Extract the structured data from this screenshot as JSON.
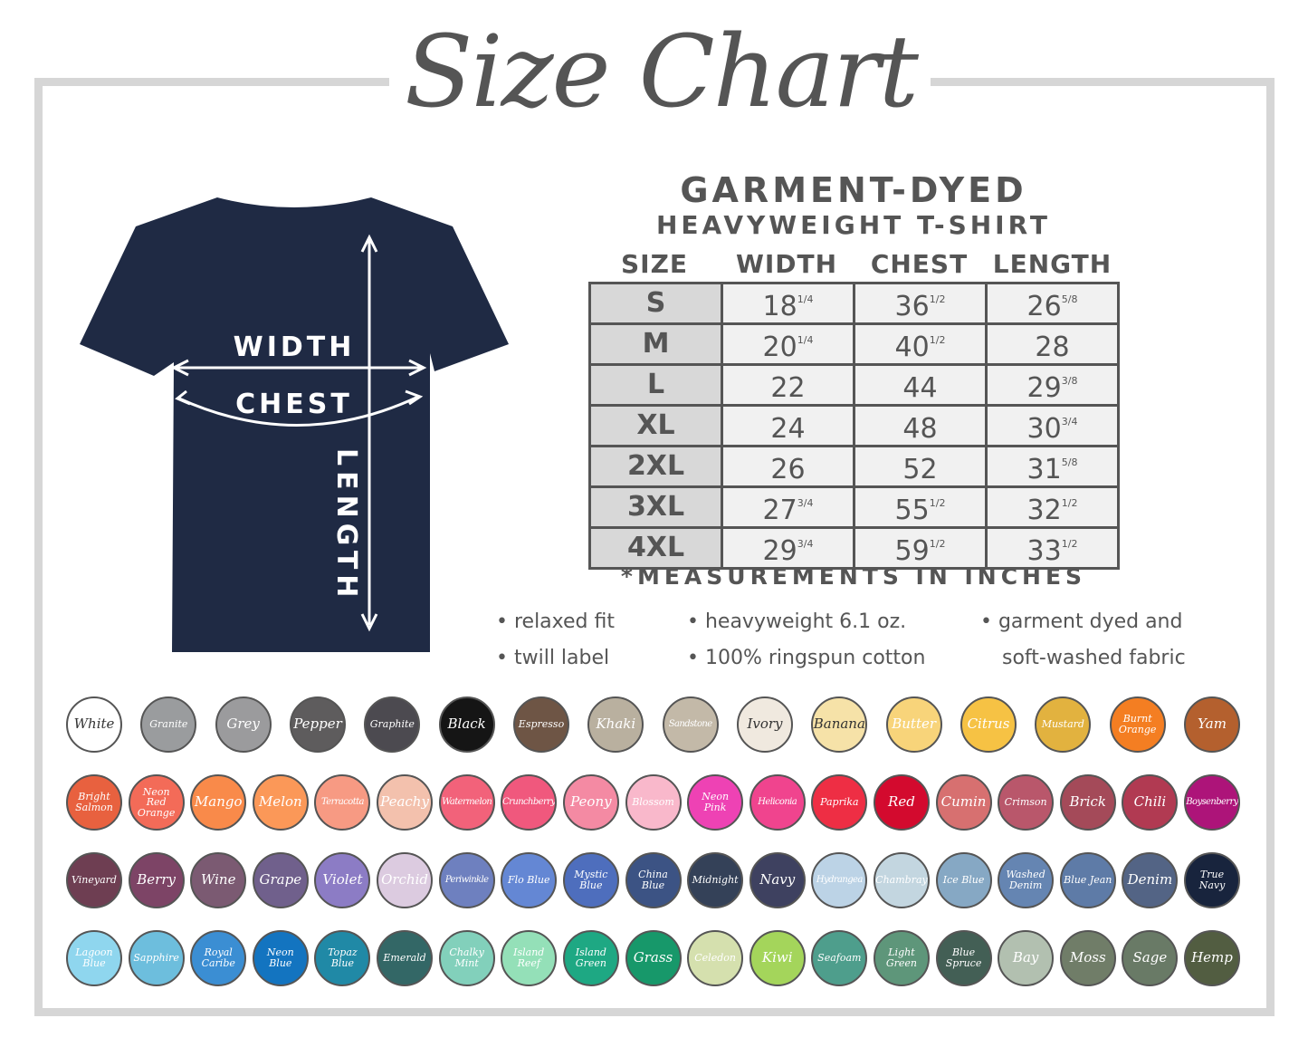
{
  "title": "Size Chart",
  "product": {
    "line1": "GARMENT-DYED",
    "line2": "HEAVYWEIGHT T-SHIRT"
  },
  "shirt": {
    "color": "#1f2a44",
    "labels": {
      "width": "WIDTH",
      "chest": "CHEST",
      "length": "LENGTH"
    }
  },
  "table": {
    "headers": [
      "SIZE",
      "WIDTH",
      "CHEST",
      "LENGTH"
    ],
    "rows": [
      {
        "size": "S",
        "width": [
          "18",
          "1/4"
        ],
        "chest": [
          "36",
          "1/2"
        ],
        "length": [
          "26",
          "5/8"
        ]
      },
      {
        "size": "M",
        "width": [
          "20",
          "1/4"
        ],
        "chest": [
          "40",
          "1/2"
        ],
        "length": [
          "28",
          ""
        ]
      },
      {
        "size": "L",
        "width": [
          "22",
          ""
        ],
        "chest": [
          "44",
          ""
        ],
        "length": [
          "29",
          "3/8"
        ]
      },
      {
        "size": "XL",
        "width": [
          "24",
          ""
        ],
        "chest": [
          "48",
          ""
        ],
        "length": [
          "30",
          "3/4"
        ]
      },
      {
        "size": "2XL",
        "width": [
          "26",
          ""
        ],
        "chest": [
          "52",
          ""
        ],
        "length": [
          "31",
          "5/8"
        ]
      },
      {
        "size": "3XL",
        "width": [
          "27",
          "3/4"
        ],
        "chest": [
          "55",
          "1/2"
        ],
        "length": [
          "32",
          "1/2"
        ]
      },
      {
        "size": "4XL",
        "width": [
          "29",
          "3/4"
        ],
        "chest": [
          "59",
          "1/2"
        ],
        "length": [
          "33",
          "1/2"
        ]
      }
    ]
  },
  "note": "*MEASUREMENTS IN INCHES",
  "features": [
    "• relaxed fit",
    "• twill label",
    "• heavyweight 6.1 oz.",
    "• 100% ringspun cotton",
    "• garment dyed and",
    "soft-washed fabric"
  ],
  "colors": [
    [
      [
        "White",
        "#ffffff"
      ],
      [
        "Granite",
        "#9a9c9e"
      ],
      [
        "Grey",
        "#9b9b9d"
      ],
      [
        "Pepper",
        "#5e5c5d"
      ],
      [
        "Graphite",
        "#4c4a50"
      ],
      [
        "Black",
        "#151515"
      ],
      [
        "Espresso",
        "#6e5545"
      ],
      [
        "Khaki",
        "#b9b09f"
      ],
      [
        "Sandstone",
        "#c3b9a8"
      ],
      [
        "Ivory",
        "#f0e9df"
      ],
      [
        "Banana",
        "#f6e2a8"
      ],
      [
        "Butter",
        "#f8d47a"
      ],
      [
        "Citrus",
        "#f6c244"
      ],
      [
        "Mustard",
        "#e2b23f"
      ],
      [
        "Burnt Orange",
        "#f47e22"
      ],
      [
        "Yam",
        "#b4602e"
      ]
    ],
    [
      [
        "Bright Salmon",
        "#e8613f"
      ],
      [
        "Neon Red Orange",
        "#f36b58"
      ],
      [
        "Mango",
        "#f98a4a"
      ],
      [
        "Melon",
        "#fb9858"
      ],
      [
        "Terracotta",
        "#f79a83"
      ],
      [
        "Peachy",
        "#f3c1ad"
      ],
      [
        "Watermelon",
        "#f2627a"
      ],
      [
        "Crunchberry",
        "#f0587d"
      ],
      [
        "Peony",
        "#f48aa3"
      ],
      [
        "Blossom",
        "#f9b8cb"
      ],
      [
        "Neon Pink",
        "#ee42b4"
      ],
      [
        "Heliconia",
        "#f0448e"
      ],
      [
        "Paprika",
        "#ee2e44"
      ],
      [
        "Red",
        "#d30a2e"
      ],
      [
        "Cumin",
        "#d77070"
      ],
      [
        "Crimson",
        "#b9576b"
      ],
      [
        "Brick",
        "#a44a59"
      ],
      [
        "Chili",
        "#b13a52"
      ],
      [
        "Boysenberry",
        "#ad1479"
      ]
    ],
    [
      [
        "Vineyard",
        "#6e3e52"
      ],
      [
        "Berry",
        "#7d4466"
      ],
      [
        "Wine",
        "#7b5a72"
      ],
      [
        "Grape",
        "#70608c"
      ],
      [
        "Violet",
        "#8c7cc5"
      ],
      [
        "Orchid",
        "#dccbe0"
      ],
      [
        "Periwinkle",
        "#6e80bf"
      ],
      [
        "Flo Blue",
        "#6487d4"
      ],
      [
        "Mystic Blue",
        "#4e6ebd"
      ],
      [
        "China Blue",
        "#3c5384"
      ],
      [
        "Midnight",
        "#344158"
      ],
      [
        "Navy",
        "#3e4160"
      ],
      [
        "Hydrangea",
        "#bcd3e6"
      ],
      [
        "Chambray",
        "#c3d6e0"
      ],
      [
        "Ice Blue",
        "#86a8c4"
      ],
      [
        "Washed Denim",
        "#6585b2"
      ],
      [
        "Blue Jean",
        "#5e7ba7"
      ],
      [
        "Denim",
        "#536485"
      ],
      [
        "True Navy",
        "#18243d"
      ]
    ],
    [
      [
        "Lagoon Blue",
        "#8fd6ee"
      ],
      [
        "Sapphire",
        "#6dbedd"
      ],
      [
        "Royal Caribe",
        "#3b8ed3"
      ],
      [
        "Neon Blue",
        "#1374c0"
      ],
      [
        "Topaz Blue",
        "#2089a6"
      ],
      [
        "Emerald",
        "#336766"
      ],
      [
        "Chalky Mint",
        "#82d0bb"
      ],
      [
        "Island Reef",
        "#94e0b8"
      ],
      [
        "Island Green",
        "#1ea883"
      ],
      [
        "Grass",
        "#17986a"
      ],
      [
        "Celedon",
        "#d5e0ae"
      ],
      [
        "Kiwi",
        "#a4d55b"
      ],
      [
        "Seafoam",
        "#4e9e8c"
      ],
      [
        "Light Green",
        "#5e967a"
      ],
      [
        "Blue Spruce",
        "#435f55"
      ],
      [
        "Bay",
        "#b2c0b0"
      ],
      [
        "Moss",
        "#707d68"
      ],
      [
        "Sage",
        "#697a66"
      ],
      [
        "Hemp",
        "#525d41"
      ]
    ]
  ]
}
